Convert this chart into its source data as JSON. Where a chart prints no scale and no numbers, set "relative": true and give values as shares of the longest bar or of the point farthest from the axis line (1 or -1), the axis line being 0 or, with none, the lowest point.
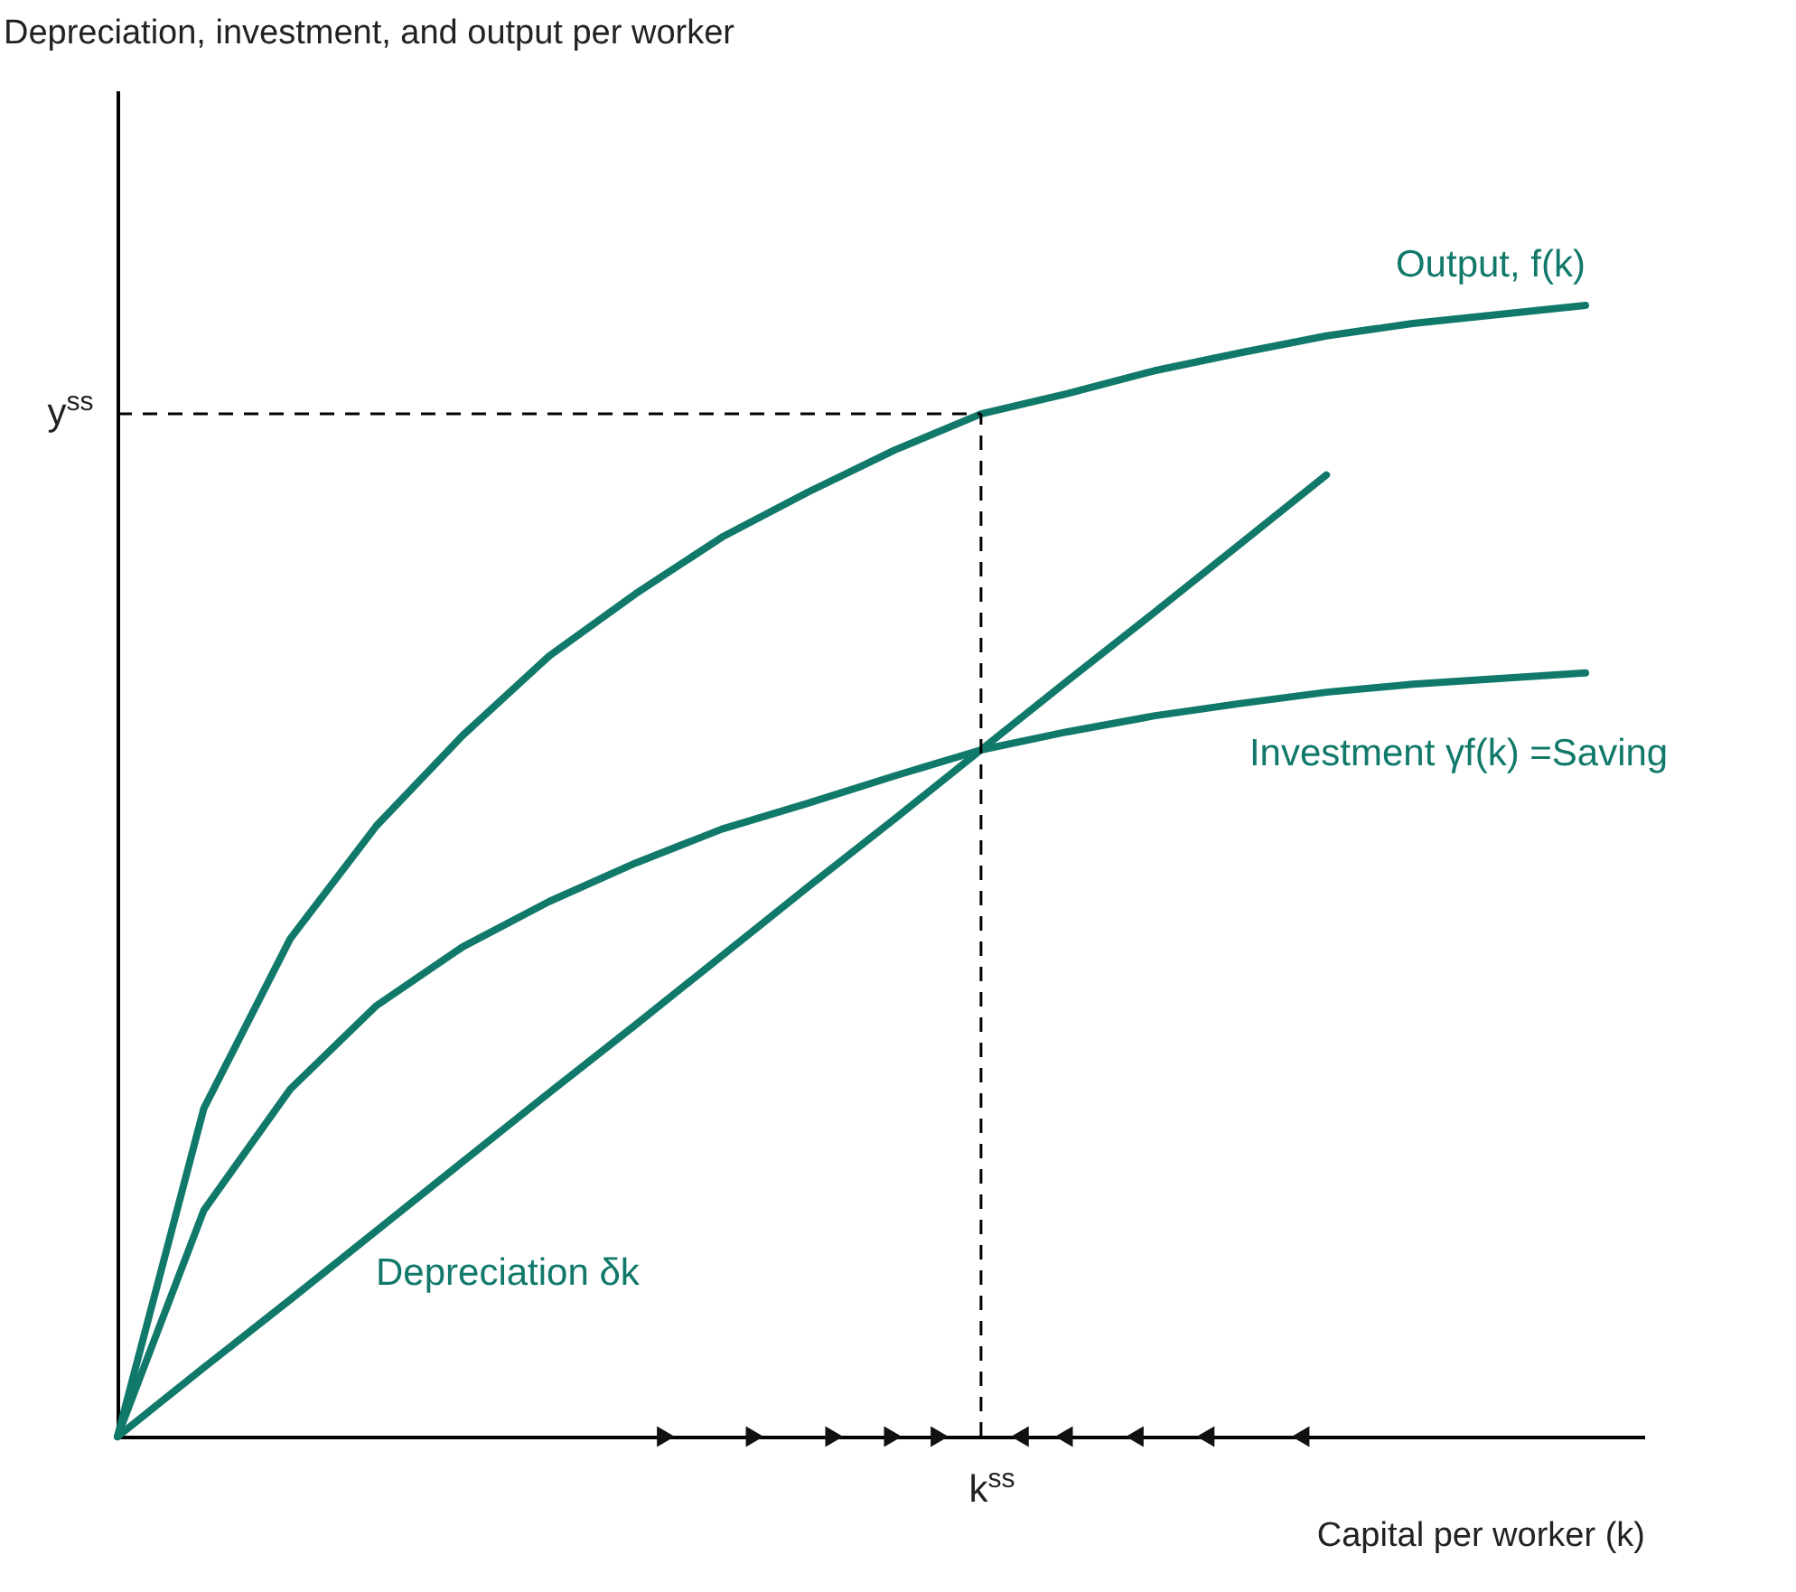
{
  "chart_data": {
    "type": "line",
    "relative": true,
    "xlabel": "Capital per worker (k)",
    "marker": "none",
    "line_style": "solid",
    "categories": [
      null,
      null,
      null,
      null,
      null,
      null,
      null,
      null,
      null,
      null,
      null,
      null,
      null,
      null,
      null,
      null,
      null,
      null
    ],
    "annotations": [
      "Depreciation, investment, and output per worker",
      "k$^{ss}$"
    ],
    "series": [
      {
        "name": "Output, f(k)",
        "color": "#11796a",
        "values": [
          0,
          0.29,
          0.44,
          0.54,
          0.62,
          0.69,
          0.745,
          0.795,
          0.835,
          0.872,
          0.904,
          0.922,
          0.942,
          0.958,
          0.973,
          0.984,
          0.992,
          1.0
        ]
      },
      {
        "name": "Investment γf(k) =Saving",
        "color": "#11796a",
        "values": [
          0,
          0.2,
          0.307,
          0.381,
          0.433,
          0.473,
          0.507,
          0.537,
          0.56,
          0.584,
          0.607,
          0.623,
          0.637,
          0.648,
          0.658,
          0.665,
          0.67,
          0.675
        ]
      },
      {
        "name": "Depreciation δk",
        "color": "#11796a",
        "values": [
          0,
          0.061,
          0.121,
          0.182,
          0.243,
          0.304,
          0.364,
          0.425,
          0.486,
          0.546,
          0.607,
          0.668,
          0.728,
          0.789,
          0.85,
          null,
          null,
          null
        ]
      }
    ],
    "ref_lines": [
      {
        "axis": "y",
        "value": 0.904,
        "label": "y$^{ss}$",
        "color": "#000000",
        "line_style": "dashed"
      }
    ]
  }
}
